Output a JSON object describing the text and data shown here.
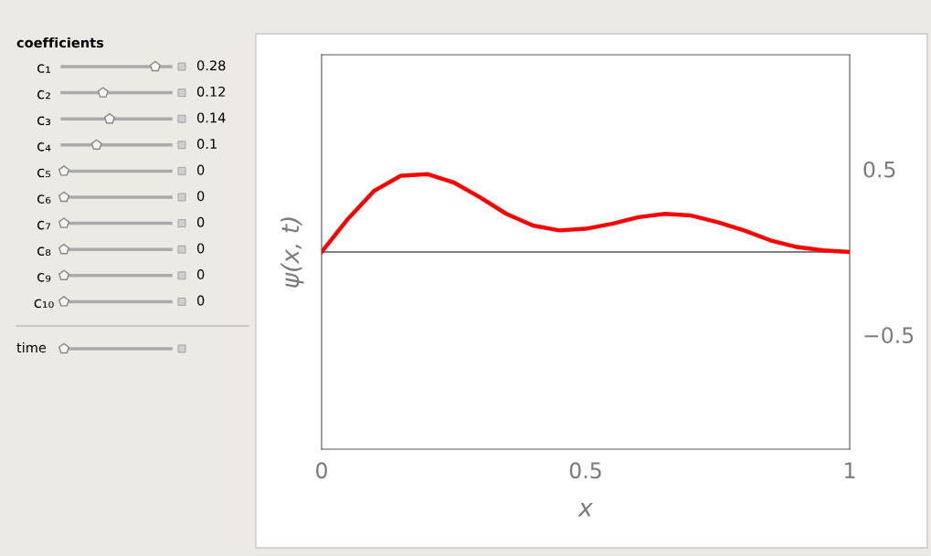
{
  "chart_data": {
    "type": "line",
    "xlabel": "x",
    "ylabel": "ψ(x, t)",
    "x": [
      0,
      0.05,
      0.1,
      0.15,
      0.2,
      0.25,
      0.3,
      0.35,
      0.4,
      0.45,
      0.5,
      0.55,
      0.6,
      0.65,
      0.7,
      0.75,
      0.8,
      0.85,
      0.9,
      0.95,
      1
    ],
    "series": [
      {
        "color": "#ff0000",
        "values": [
          0,
          0.2,
          0.37,
          0.46,
          0.47,
          0.42,
          0.33,
          0.23,
          0.16,
          0.13,
          0.14,
          0.17,
          0.21,
          0.23,
          0.22,
          0.18,
          0.13,
          0.07,
          0.03,
          0.01,
          0
        ]
      }
    ],
    "xlim": [
      0,
      1
    ],
    "ylim": [
      -1.19,
      1.19
    ],
    "xticks": [
      0,
      0.5,
      1
    ],
    "yticks": [
      0.5,
      {
        "value": -0.5,
        "label": "−0.5"
      }
    ],
    "ref_lines": [
      {
        "axis": "y",
        "value": 0,
        "color": "#000000"
      }
    ],
    "grid": false,
    "legend": false,
    "marker": "none",
    "line_style": "solid",
    "annotations": [
      "coefficients",
      "c₁",
      "0.28",
      "c₂",
      "0.12",
      "c₃",
      "0.14",
      "c₄",
      "0.1",
      "c₅",
      "0",
      "c₆",
      "0",
      "c₇",
      "0",
      "c₈",
      "0",
      "c₉",
      "0",
      "c₁₀",
      "0",
      "time"
    ]
  }
}
